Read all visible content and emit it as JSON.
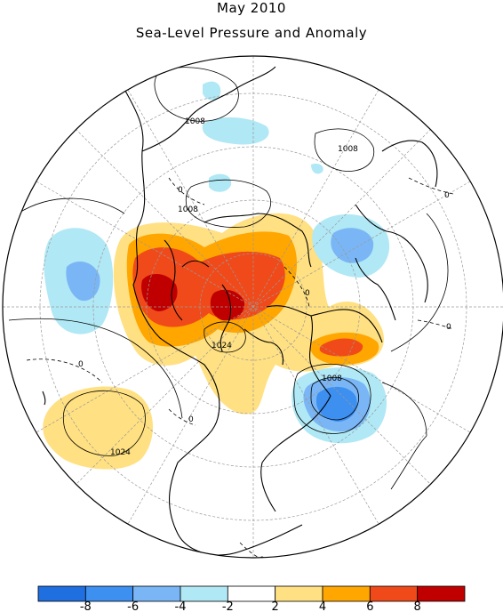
{
  "title": "May 2010",
  "subtitle": "Sea-Level Pressure and Anomaly",
  "contour_labels": [
    "1008",
    "1008",
    "1008",
    "1024",
    "1008",
    "1024",
    "0",
    "0",
    "0",
    "0",
    "0",
    "0",
    "0"
  ],
  "colorbar": {
    "tick_labels": [
      "-8",
      "-6",
      "-4",
      "-2",
      "2",
      "4",
      "6",
      "8"
    ],
    "bins": [
      {
        "color": "#1f6fe0"
      },
      {
        "color": "#3d8ff0"
      },
      {
        "color": "#7ab6f5"
      },
      {
        "color": "#b0e8f5"
      },
      {
        "color": "#ffffff"
      },
      {
        "color": "#ffe082"
      },
      {
        "color": "#ffa600"
      },
      {
        "color": "#f04a1a"
      },
      {
        "color": "#c00000"
      }
    ]
  },
  "colors": {
    "neg2": "#b0e8f5",
    "neg4": "#7ab6f5",
    "neg6": "#3d8ff0",
    "neg8": "#1f6fe0",
    "pos2": "#ffe082",
    "pos4": "#ffa600",
    "pos6": "#f04a1a",
    "pos8": "#c00000"
  }
}
